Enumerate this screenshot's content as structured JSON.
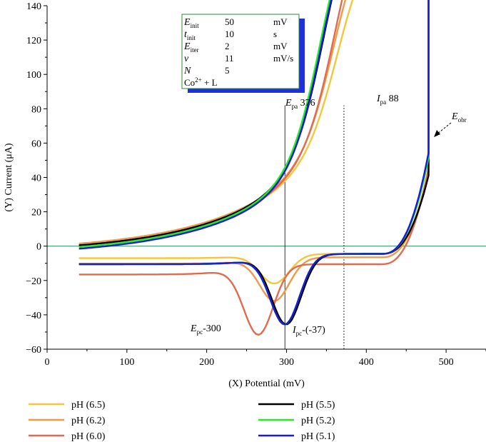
{
  "chart_data": {
    "type": "line",
    "xlabel": "(X) Potential (mV)",
    "ylabel": "(Y) Current (μA)",
    "xlim": [
      0,
      550
    ],
    "ylim": [
      -60,
      140
    ],
    "xticks": [
      0,
      100,
      200,
      300,
      400,
      500
    ],
    "yticks": [
      -60,
      -40,
      -20,
      0,
      20,
      40,
      60,
      80,
      100,
      120,
      140
    ],
    "zero_line": {
      "y": 0,
      "color": "#3a9a6a"
    },
    "vlines": [
      {
        "x": 298,
        "style": "solid"
      },
      {
        "x": 372,
        "style": "dotted"
      }
    ],
    "info_box": {
      "rows": [
        {
          "symbol": "E",
          "sub": "init",
          "value": "50",
          "unit": "mV"
        },
        {
          "symbol": "t",
          "sub": "init",
          "value": "10",
          "unit": "s"
        },
        {
          "symbol": "E",
          "sub": "iter",
          "value": "2",
          "unit": "mV"
        },
        {
          "symbol": "v",
          "sub": "",
          "value": "11",
          "unit": "mV/s"
        },
        {
          "symbol": "N",
          "sub": "",
          "value": "5",
          "unit": ""
        }
      ],
      "compound": "Co",
      "compound_sup": "2+",
      "compound_rest": " + L",
      "border_color": "#2e8b2e",
      "shadow_color": "#1f2fe0"
    },
    "annotations": {
      "epa": {
        "main": "E",
        "sub": "pa",
        "value": " 376"
      },
      "ipa": {
        "main": "I",
        "sub": "pa",
        "value": " 88"
      },
      "epc": {
        "main": "E",
        "sub": "pc",
        "value": "-300"
      },
      "ipc": {
        "main": "I",
        "sub": "pc",
        "value": "-(-37)"
      },
      "eobr": {
        "main": "E",
        "sub": "obr",
        "value": ""
      }
    },
    "series": [
      {
        "name": "pH (6.5)",
        "color": "#f5c53a",
        "ox_amp": 0.7,
        "ox_peak": 392,
        "red_amp": 0.42,
        "red_peak": 285,
        "top": 64,
        "end_low": 43,
        "start": -4,
        "bp": -3
      },
      {
        "name": "pH (6.2)",
        "color": "#f09a48",
        "ox_amp": 0.8,
        "ox_peak": 388,
        "red_amp": 0.62,
        "red_peak": 285,
        "top": 66,
        "end_low": 45,
        "start": -3,
        "bp": -5
      },
      {
        "name": "pH (6.0)",
        "color": "#e26a4f",
        "ox_amp": 0.93,
        "ox_peak": 390,
        "red_amp": 1.0,
        "red_peak": 265,
        "top": 68,
        "end_low": 46,
        "start": -4,
        "bp": -9
      },
      {
        "name": "pH (5.5)",
        "color": "#000000",
        "ox_amp": 1.0,
        "ox_peak": 376,
        "red_amp": 1.0,
        "red_peak": 300,
        "top": 74,
        "end_low": 42,
        "start": -4,
        "bp": -3
      },
      {
        "name": "pH (5.2)",
        "color": "#22ee22",
        "ox_amp": 1.0,
        "ox_peak": 372,
        "red_amp": 1.0,
        "red_peak": 298,
        "top": 64,
        "end_low": 52,
        "start": -5,
        "bp": -3
      },
      {
        "name": "pH (5.1)",
        "color": "#1a1ae0",
        "ox_amp": 1.0,
        "ox_peak": 374,
        "red_amp": 1.0,
        "red_peak": 298,
        "top": 62,
        "end_low": 55,
        "start": -6,
        "bp": -3
      }
    ]
  }
}
